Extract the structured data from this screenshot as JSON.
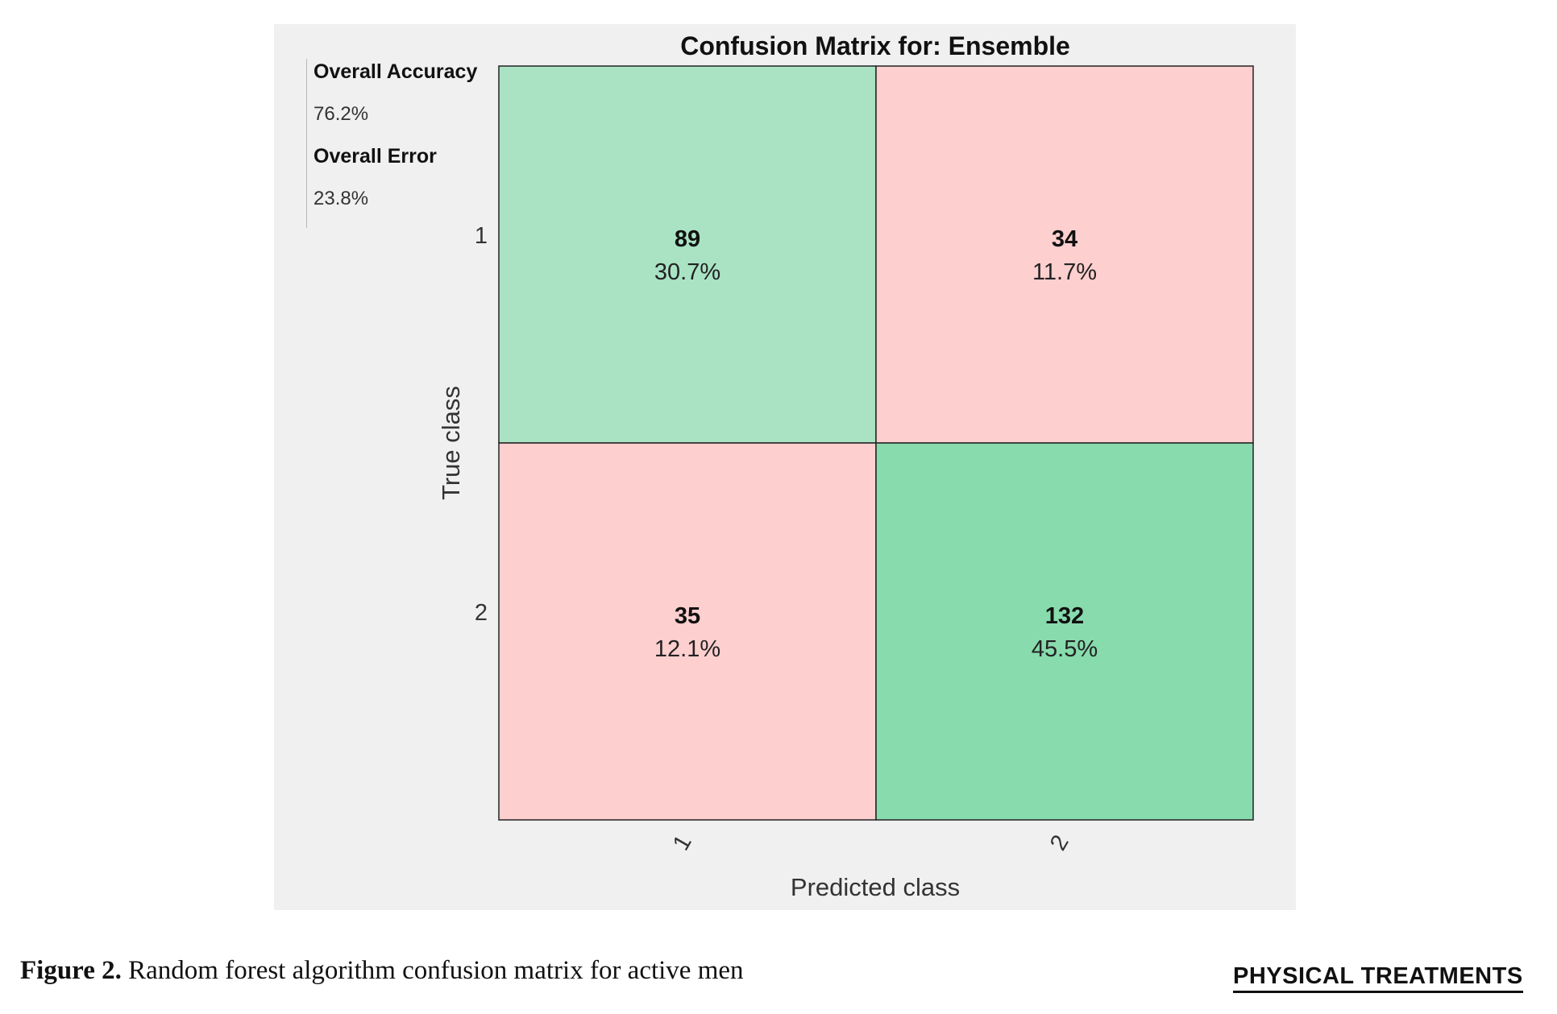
{
  "stats": {
    "accuracy_label": "Overall Accuracy",
    "accuracy_value": "76.2%",
    "error_label": "Overall Error",
    "error_value": "23.8%"
  },
  "chart_data": {
    "type": "heatmap",
    "title": "Confusion Matrix for: Ensemble",
    "xlabel": "Predicted class",
    "ylabel": "True class",
    "x_categories": [
      "1",
      "2"
    ],
    "y_categories": [
      "1",
      "2"
    ],
    "cells": [
      {
        "true": "1",
        "predicted": "1",
        "count": "89",
        "percent": "30.7%",
        "value": 89,
        "correct": true
      },
      {
        "true": "1",
        "predicted": "2",
        "count": "34",
        "percent": "11.7%",
        "value": 34,
        "correct": false
      },
      {
        "true": "2",
        "predicted": "1",
        "count": "35",
        "percent": "12.1%",
        "value": 35,
        "correct": false
      },
      {
        "true": "2",
        "predicted": "2",
        "count": "132",
        "percent": "45.5%",
        "value": 132,
        "correct": true
      }
    ],
    "colors": {
      "correct_light": "#a9e3c4",
      "correct_dark": "#88dbad",
      "incorrect": "#fecfcf",
      "background": "#f0f0f0"
    }
  },
  "caption": {
    "label": "Figure 2.",
    "text": " Random forest algorithm confusion matrix for active men"
  },
  "logo": {
    "text": "PHYSICAL TREATMENTS"
  }
}
